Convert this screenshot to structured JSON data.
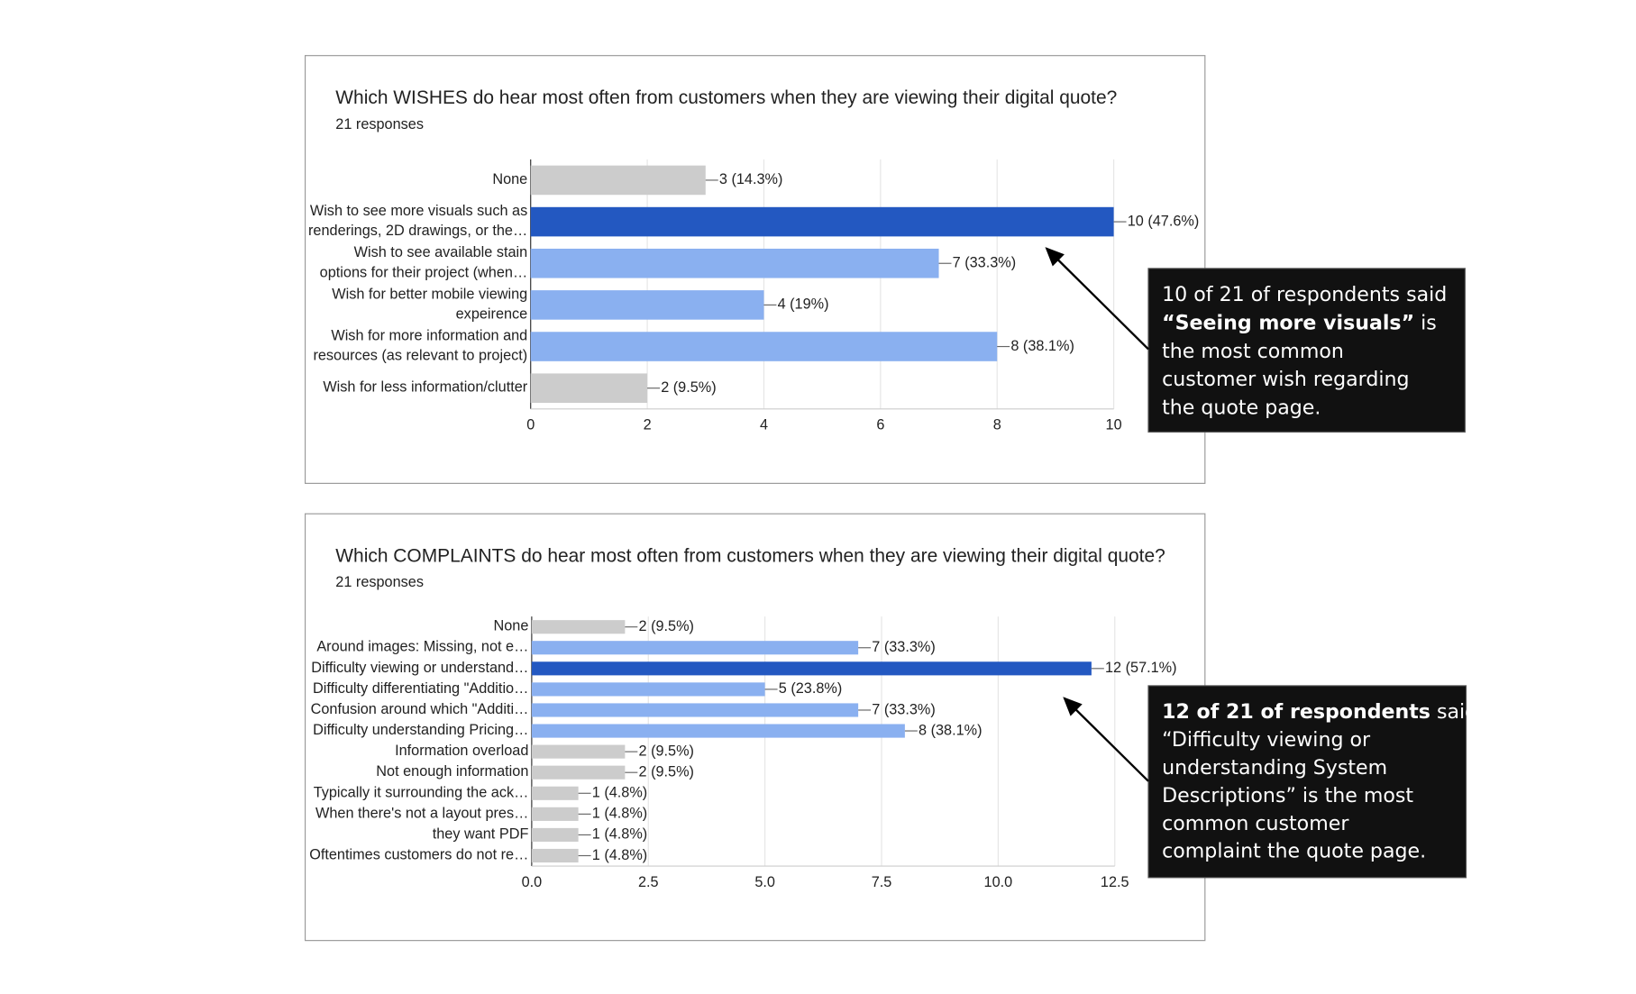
{
  "chart_data": [
    {
      "type": "hbar",
      "title": "Which WISHES do hear most often from customers when they are viewing their digital quote?",
      "subtitle": "21 responses",
      "categories": [
        [
          "None"
        ],
        [
          "Wish to see more visuals such as",
          "renderings, 2D drawings, or the…"
        ],
        [
          "Wish to see available stain",
          "options for their project (when…"
        ],
        [
          "Wish for better mobile viewing",
          "expeirence"
        ],
        [
          "Wish for more information and",
          "resources (as relevant to project)"
        ],
        [
          "Wish for less information/clutter"
        ]
      ],
      "values": [
        3,
        10,
        7,
        4,
        8,
        2
      ],
      "value_labels": [
        "3 (14.3%)",
        "10 (47.6%)",
        "7 (33.3%)",
        "4 (19%)",
        "8 (38.1%)",
        "2 (9.5%)"
      ],
      "colors": [
        "#cccccc",
        "#2358c1",
        "#8ab0f0",
        "#8ab0f0",
        "#8ab0f0",
        "#cccccc"
      ],
      "xlim": [
        0,
        10
      ],
      "xticks": [
        0,
        2,
        4,
        6,
        8,
        10
      ],
      "grid": true,
      "annotation": {
        "lines": [
          [
            {
              "text": "10 of 21 of respondents said",
              "bold": false
            }
          ],
          [
            {
              "text": "“Seeing more visuals”",
              "bold": true
            },
            {
              "text": " is",
              "bold": false
            }
          ],
          [
            {
              "text": "the most common",
              "bold": false
            }
          ],
          [
            {
              "text": "customer wish regarding",
              "bold": false
            }
          ],
          [
            {
              "text": "the quote page.",
              "bold": false
            }
          ]
        ]
      }
    },
    {
      "type": "hbar",
      "title": "Which COMPLAINTS do hear most often from customers when they are viewing their digital quote?",
      "subtitle": "21 responses",
      "categories": [
        [
          "None"
        ],
        [
          "Around images: Missing, not e…"
        ],
        [
          "Difficulty viewing or understand…"
        ],
        [
          "Difficulty differentiating \"Additio…"
        ],
        [
          "Confusion around which \"Additi…"
        ],
        [
          "Difficulty understanding Pricing…"
        ],
        [
          "Information overload"
        ],
        [
          "Not enough information"
        ],
        [
          "Typically it surrounding the ack…"
        ],
        [
          "When there's not a layout pres…"
        ],
        [
          "they want PDF"
        ],
        [
          "Oftentimes customers do not re…"
        ]
      ],
      "values": [
        2,
        7,
        12,
        5,
        7,
        8,
        2,
        2,
        1,
        1,
        1,
        1
      ],
      "value_labels": [
        "2 (9.5%)",
        "7 (33.3%)",
        "12 (57.1%)",
        "5 (23.8%)",
        "7 (33.3%)",
        "8 (38.1%)",
        "2 (9.5%)",
        "2 (9.5%)",
        "1 (4.8%)",
        "1 (4.8%)",
        "1 (4.8%)",
        "1 (4.8%)"
      ],
      "colors": [
        "#cccccc",
        "#8ab0f0",
        "#2358c1",
        "#8ab0f0",
        "#8ab0f0",
        "#8ab0f0",
        "#cccccc",
        "#cccccc",
        "#cccccc",
        "#cccccc",
        "#cccccc",
        "#cccccc"
      ],
      "xlim": [
        0,
        12.5
      ],
      "xticks": [
        {
          "value": 0,
          "label": "0.0"
        },
        2.5,
        {
          "value": 5,
          "label": "5.0"
        },
        7.5,
        {
          "value": 10,
          "label": "10.0"
        },
        12.5
      ],
      "grid": true,
      "annotation": {
        "lines": [
          [
            {
              "text": "12 of 21 of respondents",
              "bold": true
            },
            {
              "text": " said",
              "bold": false
            }
          ],
          [
            {
              "text": "“Difficulty  viewing or",
              "bold": false
            }
          ],
          [
            {
              "text": "understanding System",
              "bold": false
            }
          ],
          [
            {
              "text": "Descriptions” is the most",
              "bold": false
            }
          ],
          [
            {
              "text": "common customer",
              "bold": false
            }
          ],
          [
            {
              "text": "complaint the quote page.",
              "bold": false
            }
          ]
        ]
      }
    }
  ]
}
